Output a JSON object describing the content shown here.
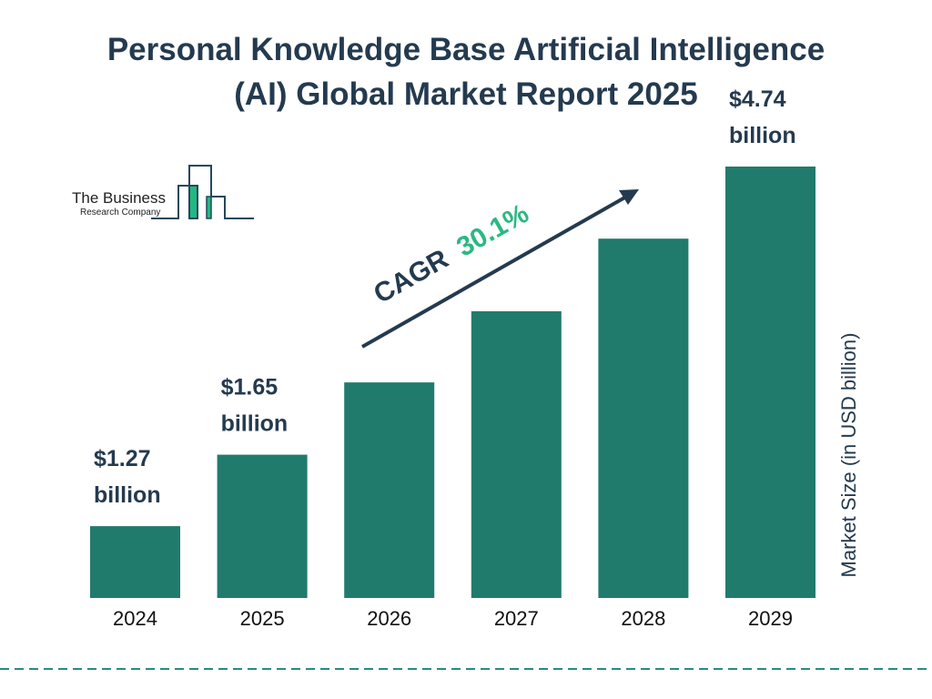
{
  "chart_data": {
    "type": "bar",
    "title": "Personal Knowledge Base Artificial Intelligence (AI) Global Market Report 2025",
    "title_lines": [
      "Personal Knowledge Base Artificial Intelligence",
      "(AI) Global Market Report 2025"
    ],
    "categories": [
      "2024",
      "2025",
      "2026",
      "2027",
      "2028",
      "2029"
    ],
    "values": [
      1.27,
      1.65,
      2.15,
      2.79,
      3.64,
      4.74
    ],
    "data_labels": [
      [
        "$1.27",
        "billion"
      ],
      [
        "$1.65",
        "billion"
      ],
      null,
      null,
      null,
      [
        "$4.74",
        "billion"
      ]
    ],
    "ylabel": "Market Size (in USD billion)",
    "xlabel": "",
    "yscale": "log",
    "grid": false,
    "annotation": {
      "prefix": "CAGR",
      "value": "30.1%"
    },
    "colors": {
      "bar": "#217b6c",
      "title": "#243a4f",
      "cagr": "#2bb883",
      "dash": "#2a8a86"
    }
  },
  "logo": {
    "line1": "The Business",
    "line2": "Research Company"
  }
}
